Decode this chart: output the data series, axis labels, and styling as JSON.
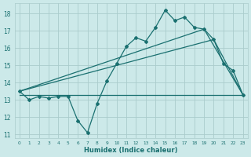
{
  "xlabel": "Humidex (Indice chaleur)",
  "background_color": "#cce9e9",
  "grid_color": "#aacccc",
  "line_color": "#1a7070",
  "x_values": [
    0,
    1,
    2,
    3,
    4,
    5,
    6,
    7,
    8,
    9,
    10,
    11,
    12,
    13,
    14,
    15,
    16,
    17,
    18,
    19,
    20,
    21,
    22,
    23
  ],
  "y_main": [
    13.5,
    13.0,
    13.2,
    13.1,
    13.2,
    13.2,
    11.8,
    11.1,
    12.8,
    14.1,
    15.1,
    16.1,
    16.6,
    16.4,
    17.2,
    18.2,
    17.6,
    17.8,
    17.2,
    17.1,
    16.5,
    15.1,
    14.7,
    13.3
  ],
  "y_flat": [
    13.3,
    13.3,
    13.3,
    13.3,
    13.3,
    13.3,
    13.3,
    13.3,
    13.3,
    13.3,
    13.3,
    13.3,
    13.3,
    13.3,
    13.3,
    13.3,
    13.3,
    13.3,
    13.3,
    13.3,
    13.3,
    13.3,
    13.3,
    13.3
  ],
  "trend1_x": [
    0,
    20,
    23
  ],
  "trend1_y": [
    13.5,
    16.5,
    13.3
  ],
  "trend2_x": [
    0,
    19,
    23
  ],
  "trend2_y": [
    13.5,
    17.1,
    13.3
  ],
  "ylim": [
    10.8,
    18.6
  ],
  "xlim": [
    -0.5,
    23.5
  ],
  "yticks": [
    11,
    12,
    13,
    14,
    15,
    16,
    17,
    18
  ],
  "xticks": [
    0,
    1,
    2,
    3,
    4,
    5,
    6,
    7,
    8,
    9,
    10,
    11,
    12,
    13,
    14,
    15,
    16,
    17,
    18,
    19,
    20,
    21,
    22,
    23
  ]
}
